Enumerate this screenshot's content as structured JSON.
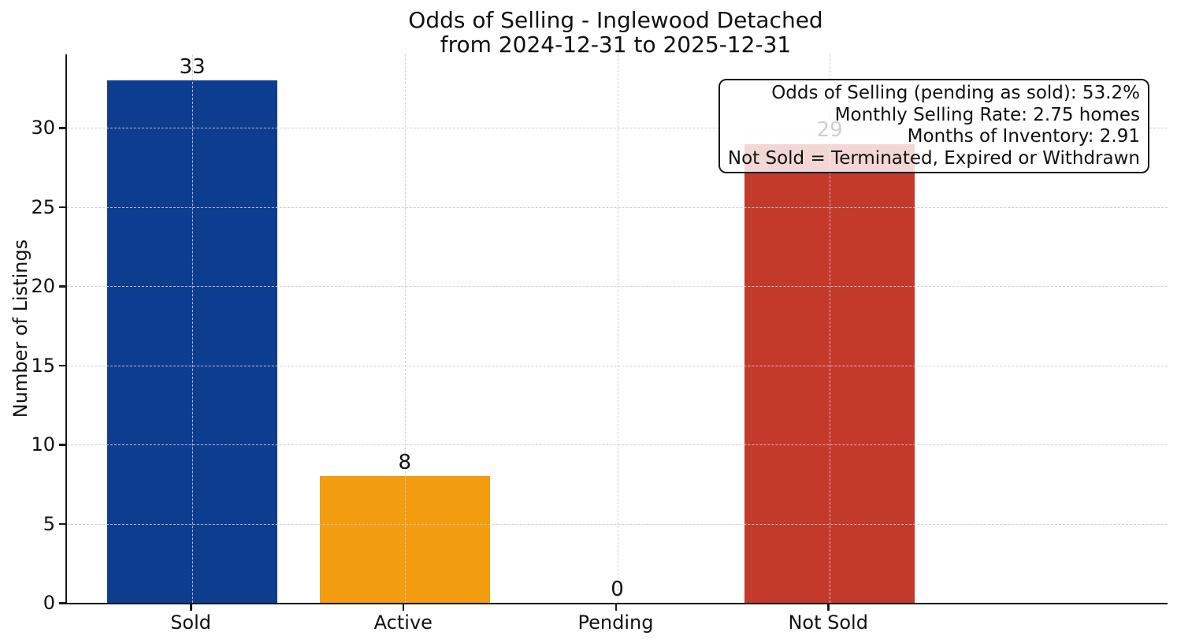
{
  "chart_data": {
    "type": "bar",
    "title": "Odds of Selling - Inglewood Detached",
    "subtitle": "from 2024-12-31 to 2025-12-31",
    "ylabel": "Number of Listings",
    "xlabel": "",
    "categories": [
      "Sold",
      "Active",
      "Pending",
      "Not Sold"
    ],
    "values": [
      33,
      8,
      0,
      29
    ],
    "bar_value_labels": [
      "33",
      "8",
      "0",
      "29"
    ],
    "bar_colors": [
      "#0d3d8f",
      "#f29d0f",
      "#808080",
      "#c33a2b"
    ],
    "yticks": [
      0,
      5,
      10,
      15,
      20,
      25,
      30
    ],
    "ylim": [
      0,
      34.65
    ],
    "grid": true,
    "grid_style": "dashed",
    "legend_position": "none",
    "annotation": {
      "lines": [
        "Odds of Selling (pending as sold): 53.2%",
        "Monthly Selling Rate: 2.75 homes",
        "Months of Inventory: 2.91",
        "Not Sold = Terminated, Expired or Withdrawn"
      ]
    },
    "colors": {
      "axis": "#1a1a1a",
      "grid": "#cbcbcb",
      "text": "#111111",
      "background": "#ffffff",
      "sold_bar": "#0d3d8f",
      "active_bar": "#f29d0f",
      "not_sold_bar": "#c33a2b"
    }
  }
}
